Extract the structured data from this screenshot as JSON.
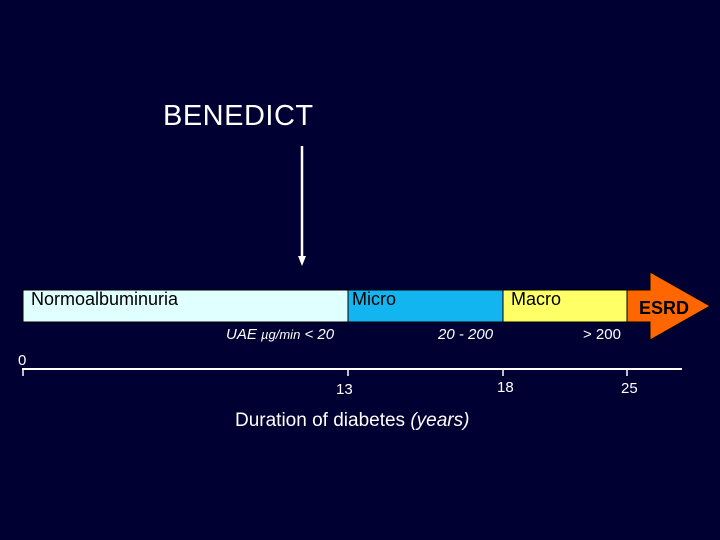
{
  "title": "BENEDICT",
  "stages": {
    "normo": {
      "label": "Normoalbuminuria",
      "color": "#e0ffff"
    },
    "micro": {
      "label": "Micro",
      "color": "#13b5f0"
    },
    "macro": {
      "label": "Macro",
      "color": "#ffff66"
    },
    "esrd": {
      "label": "ESRD",
      "color": "#ff6600"
    }
  },
  "uae": {
    "prefix": "UAE",
    "unit": "µg/min",
    "normo_range": "< 20",
    "micro_range": "20 - 200",
    "macro_range": "> 200"
  },
  "axis": {
    "ticks": [
      {
        "label": "0",
        "value": 0
      },
      {
        "label": "13",
        "value": 13
      },
      {
        "label": "18",
        "value": 18
      },
      {
        "label": "25",
        "value": 25
      }
    ],
    "title_main": "Duration of diabetes",
    "title_unit": "(years)"
  }
}
